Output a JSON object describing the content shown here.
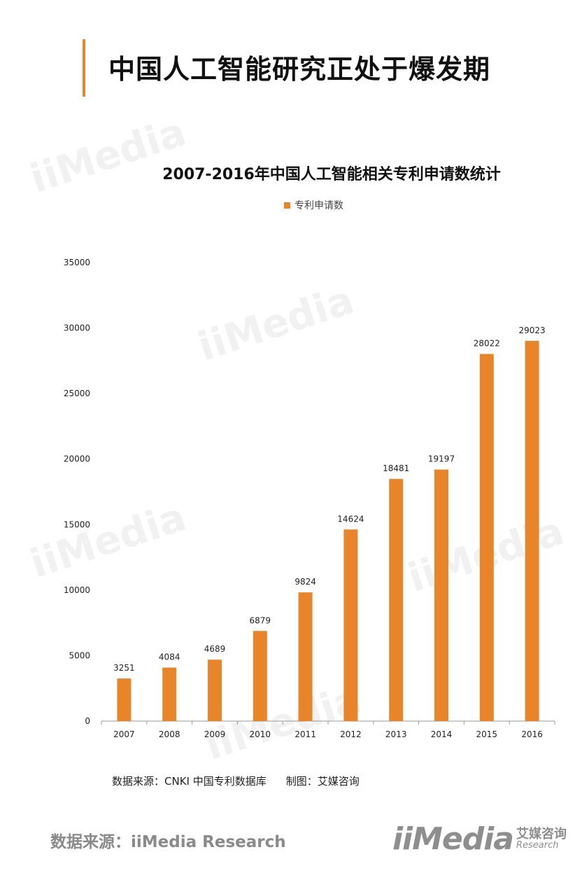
{
  "page": {
    "title": "中国人工智能研究正处于爆发期",
    "source_note": "数据来源：CNKI 中国专利数据库",
    "made_by": "制图：艾媒咨询",
    "footer_source": "数据来源：iiMedia Research",
    "logo_brand": "iiMedia",
    "logo_cn": "艾媒咨询",
    "logo_en": "Research",
    "watermark": "iiMedia"
  },
  "colors": {
    "accent": "#e8852b",
    "bar": "#e8852b"
  },
  "chart_data": {
    "type": "bar",
    "title": "2007-2016年中国人工智能相关专利申请数统计",
    "categories": [
      "2007",
      "2008",
      "2009",
      "2010",
      "2011",
      "2012",
      "2013",
      "2014",
      "2015",
      "2016"
    ],
    "series": [
      {
        "name": "专利申请数",
        "values": [
          3251,
          4084,
          4689,
          6879,
          9824,
          14624,
          18481,
          19197,
          28022,
          29023
        ]
      }
    ],
    "yticks": [
      0,
      5000,
      10000,
      15000,
      20000,
      25000,
      30000,
      35000
    ],
    "ylim": [
      0,
      35000
    ],
    "grid": false,
    "legend": "top-center",
    "data_labels": true
  }
}
